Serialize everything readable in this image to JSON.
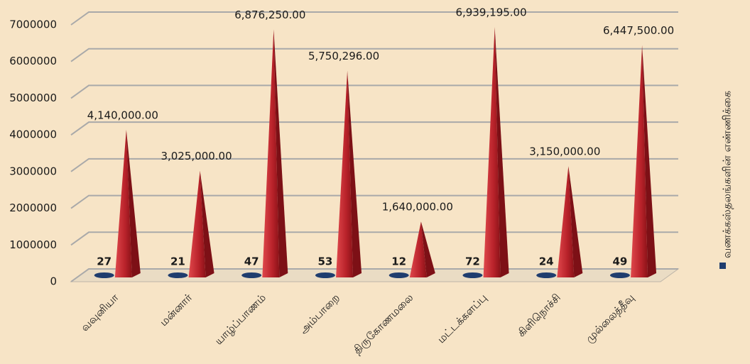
{
  "chart_data": {
    "type": "pyramid",
    "categories": [
      "வவுனியா",
      "மன்னார்",
      "யாழ்ப்பாணம்",
      "அம்பாறை",
      "திருகோணமலை",
      "மட்டக்களப்பு",
      "கிளிநொச்சி",
      "முல்லைத்தீவு"
    ],
    "series": [
      {
        "color": "#c0282d",
        "values": [
          4140000,
          3025000,
          6876250,
          5750296,
          1640000,
          6939195,
          3150000,
          6447500
        ],
        "value_labels": [
          "4,140,000.00",
          "3,025,000.00",
          "6,876,250.00",
          "5,750,296.00",
          "1,640,000.00",
          "6,939,195.00",
          "3,150,000.00",
          "6,447,500.00"
        ]
      },
      {
        "name": "வணக்கஸ்தலங்களின் எண்ணிக்கை",
        "color": "#1f3d6e",
        "values": [
          27,
          21,
          47,
          53,
          12,
          72,
          24,
          49
        ]
      }
    ],
    "ylim": [
      0,
      7000000
    ],
    "yticks": [
      0,
      1000000,
      2000000,
      3000000,
      4000000,
      5000000,
      6000000,
      7000000
    ],
    "grid": true,
    "legend": "right"
  }
}
